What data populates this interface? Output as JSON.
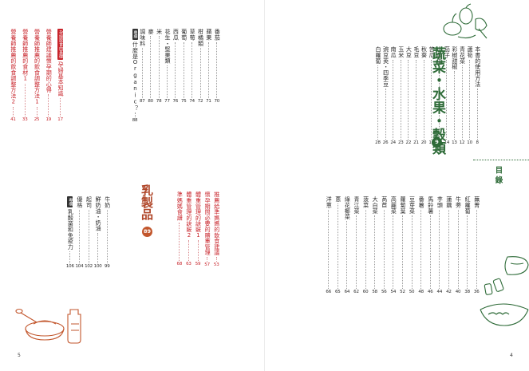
{
  "page_left": "5",
  "page_right": "4",
  "toc_label": "目錄",
  "section_vegetables": {
    "title": "蔬菜・水果・穀類",
    "page": "9"
  },
  "section_dairy": {
    "title": "乳製品",
    "page": "89"
  },
  "right_top": [
    {
      "text": "本書的使用方法",
      "page": "8"
    },
    {
      "text": "蘆筍",
      "page": "10"
    },
    {
      "text": "青花菜",
      "page": "12"
    },
    {
      "text": "彩椒甜椒",
      "page": "13"
    },
    {
      "text": "茄子",
      "page": "14"
    },
    {
      "text": "小黃瓜",
      "page": "16"
    },
    {
      "text": "苦瓜",
      "page": "18"
    },
    {
      "text": "秋葵",
      "page": "20"
    },
    {
      "text": "毛豆",
      "page": "21"
    },
    {
      "text": "大豆",
      "page": "22"
    },
    {
      "text": "玉米",
      "page": "23"
    },
    {
      "text": "南瓜",
      "page": "24"
    },
    {
      "text": "豌豆莢・四季豆",
      "page": "26"
    },
    {
      "text": "白蘿蔔",
      "page": "28"
    }
  ],
  "right_bottom": [
    {
      "text": "蕪菁",
      "page": "36"
    },
    {
      "text": "紅蘿蔔",
      "page": "38"
    },
    {
      "text": "牛蒡",
      "page": "40"
    },
    {
      "text": "蓮藕",
      "page": "42"
    },
    {
      "text": "芋頭",
      "page": "44"
    },
    {
      "text": "馬鈴薯",
      "page": "46"
    },
    {
      "text": "番薯",
      "page": "48"
    },
    {
      "text": "豆芽菜",
      "page": "50"
    },
    {
      "text": "蘿蔔葉",
      "page": "52"
    },
    {
      "text": "高麗菜",
      "page": "54"
    },
    {
      "text": "萵苣",
      "page": "56"
    },
    {
      "text": "大白菜",
      "page": "58"
    },
    {
      "text": "菠菜",
      "page": "60"
    },
    {
      "text": "青江菜",
      "page": "62"
    },
    {
      "text": "綠花椰菜",
      "page": "64"
    },
    {
      "text": "蔥",
      "page": "65"
    },
    {
      "text": "洋蔥",
      "page": "66"
    }
  ],
  "left_top_a": [
    {
      "text": "番茄",
      "page": "70"
    },
    {
      "text": "蘋果",
      "page": "71"
    },
    {
      "text": "柑橘類",
      "page": "72"
    },
    {
      "text": "草莓",
      "page": "74"
    },
    {
      "text": "葡萄",
      "page": "75"
    },
    {
      "text": "西瓜",
      "page": "76"
    },
    {
      "text": "花生・堅果類",
      "page": "77"
    },
    {
      "text": "米",
      "page": "78"
    },
    {
      "text": "麥",
      "page": "80"
    },
    {
      "text": "調味料",
      "page": "87"
    }
  ],
  "left_top_b": [
    {
      "tag": "專欄",
      "text": "什麼是Organic？",
      "page": "88"
    }
  ],
  "left_top_red": [
    {
      "tag": "孕婦飲食的基礎",
      "text": "孕婦基本知識",
      "page": "17"
    },
    {
      "text": "營養師建議懷孕期的心得",
      "page": "19"
    },
    {
      "text": "營養師推薦的飲食調整方法1",
      "page": "25"
    },
    {
      "text": "營養師推薦的食材1",
      "page": "33"
    },
    {
      "text": "營養師推薦的飲食調整方法2",
      "page": "41"
    }
  ],
  "left_bottom_red": [
    {
      "text": "推薦給準媽媽的飲食建議",
      "page": "53"
    },
    {
      "text": "懷孕期間必要的體重管理",
      "page": "57"
    },
    {
      "text": "體重管理的訣竅1",
      "page": "59"
    },
    {
      "text": "體重管理的訣竅2",
      "page": "63"
    },
    {
      "text": "準媽媽食譜",
      "page": "68"
    }
  ],
  "left_bottom": [
    {
      "text": "牛奶",
      "page": "99"
    },
    {
      "text": "鮮奶油・奶油",
      "page": "100"
    },
    {
      "text": "起司",
      "page": "102"
    },
    {
      "text": "優格",
      "page": "104"
    },
    {
      "tag": "專欄",
      "text": "乳酸菌和免疫力",
      "page": "106"
    }
  ],
  "colors": {
    "green": "#2e6b38",
    "red": "#c8242b",
    "brown": "#b0472a",
    "sketch": "#c2562c"
  }
}
